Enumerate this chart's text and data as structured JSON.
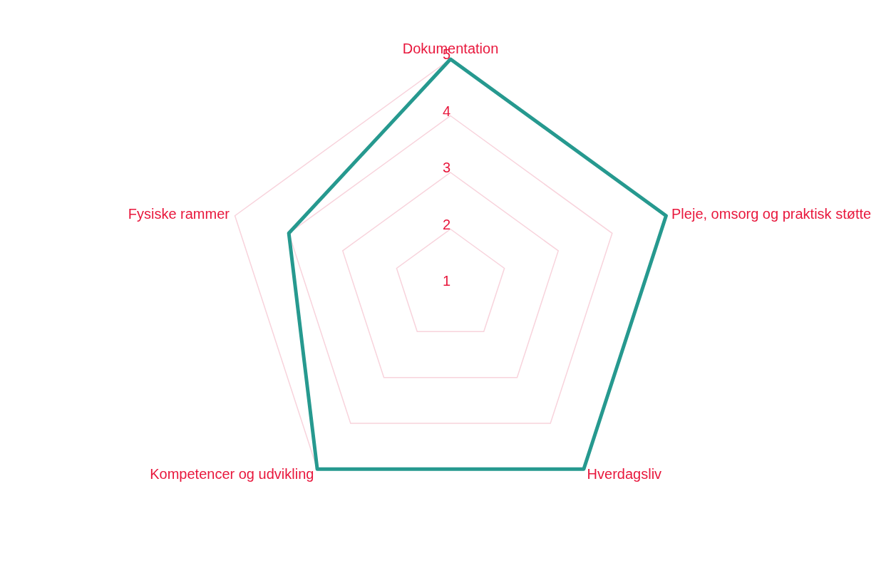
{
  "chart_data": {
    "type": "radar",
    "categories": [
      "Dokumentation",
      "Pleje, omsorg og praktisk støtte",
      "Hverdagsliv",
      "Kompetencer og udvikling",
      "Fysiske rammer"
    ],
    "series": [
      {
        "color": "#26998f",
        "values": [
          5,
          5,
          5,
          5,
          4
        ]
      }
    ],
    "ylim": [
      1,
      5
    ],
    "yticks": [
      1,
      2,
      3,
      4,
      5
    ],
    "grid": true
  }
}
